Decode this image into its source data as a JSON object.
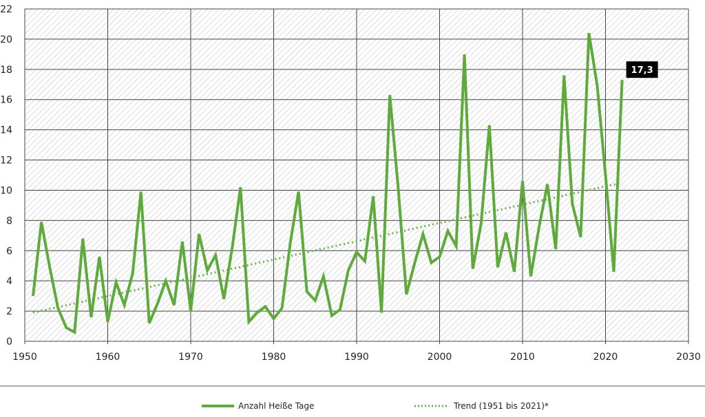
{
  "chart_data": {
    "type": "line",
    "title": "",
    "xlabel": "",
    "ylabel": "",
    "xlim": [
      1950,
      2030
    ],
    "ylim": [
      0,
      22
    ],
    "xticks": [
      "1950",
      "1960",
      "1970",
      "1980",
      "1990",
      "2000",
      "2010",
      "2020",
      "2030"
    ],
    "yticks": [
      "0",
      "2",
      "4",
      "6",
      "8",
      "10",
      "12",
      "14",
      "16",
      "18",
      "20",
      "22"
    ],
    "grid": true,
    "legend_position": "bottom",
    "series": [
      {
        "name": "Anzahl Heiße Tage",
        "color": "#5faa3c",
        "style": "solid",
        "x": [
          1951,
          1952,
          1953,
          1954,
          1955,
          1956,
          1957,
          1958,
          1959,
          1960,
          1961,
          1962,
          1963,
          1964,
          1965,
          1966,
          1967,
          1968,
          1969,
          1970,
          1971,
          1972,
          1973,
          1974,
          1975,
          1976,
          1977,
          1978,
          1979,
          1980,
          1981,
          1982,
          1983,
          1984,
          1985,
          1986,
          1987,
          1988,
          1989,
          1990,
          1991,
          1992,
          1993,
          1994,
          1995,
          1996,
          1997,
          1998,
          1999,
          2000,
          2001,
          2002,
          2003,
          2004,
          2005,
          2006,
          2007,
          2008,
          2009,
          2010,
          2011,
          2012,
          2013,
          2014,
          2015,
          2016,
          2017,
          2018,
          2019,
          2020,
          2021,
          2022
        ],
        "values": [
          3.0,
          7.9,
          4.9,
          2.2,
          0.9,
          0.6,
          6.8,
          1.6,
          5.6,
          1.3,
          3.9,
          2.4,
          4.5,
          9.9,
          1.2,
          2.5,
          4.0,
          2.4,
          6.6,
          2.0,
          7.1,
          4.7,
          5.7,
          2.8,
          6.2,
          10.2,
          1.3,
          1.9,
          2.3,
          1.5,
          2.2,
          6.5,
          9.9,
          3.3,
          2.7,
          4.3,
          1.7,
          2.1,
          4.7,
          5.9,
          5.3,
          9.6,
          1.9,
          16.3,
          10.2,
          3.1,
          5.2,
          7.1,
          5.2,
          5.6,
          7.3,
          6.3,
          19.0,
          4.8,
          7.8,
          14.3,
          4.9,
          7.2,
          4.6,
          10.6,
          4.3,
          7.6,
          10.4,
          6.1,
          17.6,
          9.1,
          6.9,
          20.4,
          16.9,
          11.0,
          4.6,
          17.3
        ]
      },
      {
        "name": "Trend (1951 bis 2021)*",
        "color": "#66b345",
        "style": "dotted",
        "x": [
          1951,
          2022
        ],
        "values": [
          1.9,
          10.5
        ]
      }
    ],
    "annotations": [
      {
        "text": "17,3",
        "x": 2022,
        "y": 17.3
      }
    ]
  },
  "legend": {
    "series_label": "Anzahl Heiße Tage",
    "trend_label": "Trend (1951 bis 2021)*"
  },
  "colors": {
    "line": "#5faa3c",
    "trend": "#66b345",
    "grid": "#444444",
    "hatch": "#cfcfcf",
    "callout_bg": "#000000"
  }
}
